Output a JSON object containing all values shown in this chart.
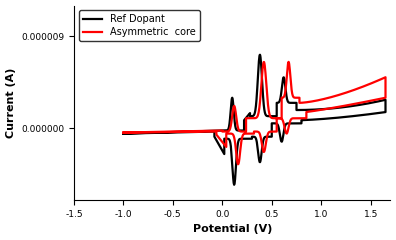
{
  "title": "",
  "xlabel": "Potential (V)",
  "ylabel": "Current (A)",
  "xlim": [
    -1.5,
    1.7
  ],
  "ylim": [
    -7e-06,
    1.2e-05
  ],
  "yticks": [
    0.0,
    9e-06
  ],
  "ytick_labels": [
    "0.000000",
    "0.000009"
  ],
  "xticks": [
    -1.5,
    -1.0,
    -0.5,
    0.0,
    0.5,
    1.0,
    1.5
  ],
  "legend_labels": [
    "Ref Dopant",
    "Asymmetric  core"
  ],
  "legend_colors": [
    "black",
    "red"
  ],
  "bg_color": "#ffffff",
  "line_width": 1.6
}
